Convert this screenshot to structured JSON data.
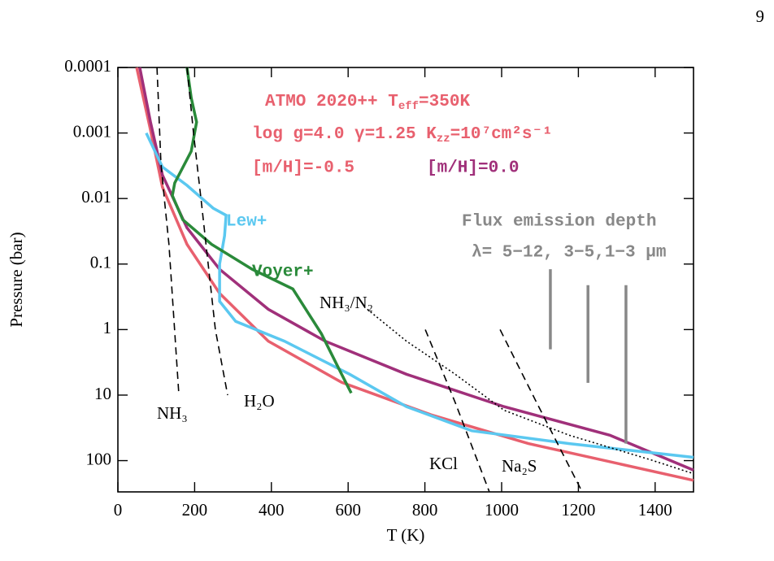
{
  "page_number": 9,
  "chart_data": {
    "type": "line",
    "annotations": [
      {
        "parts": [
          "ATMO 2020++ T",
          "eff",
          "=350K"
        ]
      },
      {
        "parts": [
          "log g=4.0 γ=1.25 K",
          "zz",
          "=10⁷cm²s⁻¹"
        ]
      }
    ],
    "x_label": "T (K)",
    "y_label": "Pressure (bar)",
    "xlim": [
      0,
      1500
    ],
    "xticks": [
      0,
      200,
      400,
      600,
      800,
      1000,
      1200,
      1400
    ],
    "ylim": [
      300,
      0.0001
    ],
    "yticks": [
      0.0001,
      0.001,
      0.01,
      0.1,
      1,
      10,
      100
    ],
    "y_log": true,
    "annotation_color": "#e8606e",
    "series": [
      {
        "name": "[m/H]=-0.5",
        "color": "#e8606e",
        "style": "solid",
        "x": [
          49,
          85,
          116,
          180,
          265,
          392,
          583,
          816,
          1070,
          1500
        ],
        "values": [
          0.0001,
          0.0009,
          0.0067,
          0.05,
          0.28,
          1.5,
          6.4,
          20,
          55,
          200
        ]
      },
      {
        "name": "[m/H]=0.0",
        "color": "#a0307a",
        "style": "solid",
        "x": [
          57,
          85,
          116,
          180,
          265,
          392,
          540,
          752,
          1006,
          1282,
          1500
        ],
        "values": [
          0.0001,
          0.00068,
          0.0044,
          0.028,
          0.12,
          0.49,
          1.5,
          4.8,
          15,
          41,
          140
        ]
      },
      {
        "name": "Lew+",
        "color": "#5bc8f0",
        "style": "solid",
        "x": [
          74,
          116,
          180,
          248,
          282,
          278,
          265,
          265,
          307,
          434,
          604,
          752,
          922,
          1176,
          1500
        ],
        "values": [
          0.001,
          0.0033,
          0.0063,
          0.014,
          0.018,
          0.037,
          0.1,
          0.37,
          0.75,
          1.5,
          4.8,
          15,
          35,
          55,
          89
        ]
      },
      {
        "name": "Voyer+",
        "color": "#2a8a3a",
        "style": "solid",
        "x": [
          180,
          191,
          205,
          191,
          148,
          142,
          169,
          244,
          350,
          456,
          530,
          583,
          608
        ],
        "values": [
          0.0001,
          0.00029,
          0.00068,
          0.0019,
          0.0058,
          0.009,
          0.021,
          0.05,
          0.12,
          0.24,
          1.15,
          4.8,
          9.3
        ]
      },
      {
        "name": "NH₃/N₂",
        "color": "#000000",
        "style": "dotted",
        "x": [
          650,
          752,
          879,
          1006,
          1176,
          1388,
          1500
        ],
        "values": [
          0.49,
          1.5,
          4.8,
          17,
          41,
          97,
          158
        ]
      },
      {
        "name": "NH₃",
        "color": "#000000",
        "style": "dashed",
        "x": [
          102,
          112,
          121,
          133,
          159
        ],
        "values": [
          0.0001,
          0.0028,
          0.01,
          0.05,
          9.8
        ]
      },
      {
        "name": "H₂O",
        "color": "#000000",
        "style": "dashed",
        "x": [
          180,
          197,
          218,
          254,
          286
        ],
        "values": [
          0.0001,
          0.001,
          0.012,
          1,
          10
        ]
      },
      {
        "name": "KCl",
        "color": "#000000",
        "style": "dashed",
        "x": [
          801,
          879,
          968
        ],
        "values": [
          1,
          13,
          300
        ]
      },
      {
        "name": "Na₂S",
        "color": "#000000",
        "style": "dashed",
        "x": [
          996,
          1091,
          1210
        ],
        "values": [
          1,
          13,
          300
        ]
      }
    ],
    "flux_depth": {
      "name": "Flux emission depth",
      "label": "λ= 5−12, 3−5,1−3 μm",
      "color": "#888888",
      "x": [
        1127,
        1225,
        1324
      ],
      "top": [
        0.12,
        0.21,
        0.21
      ],
      "bottom": [
        2.0,
        6.5,
        55
      ]
    }
  }
}
